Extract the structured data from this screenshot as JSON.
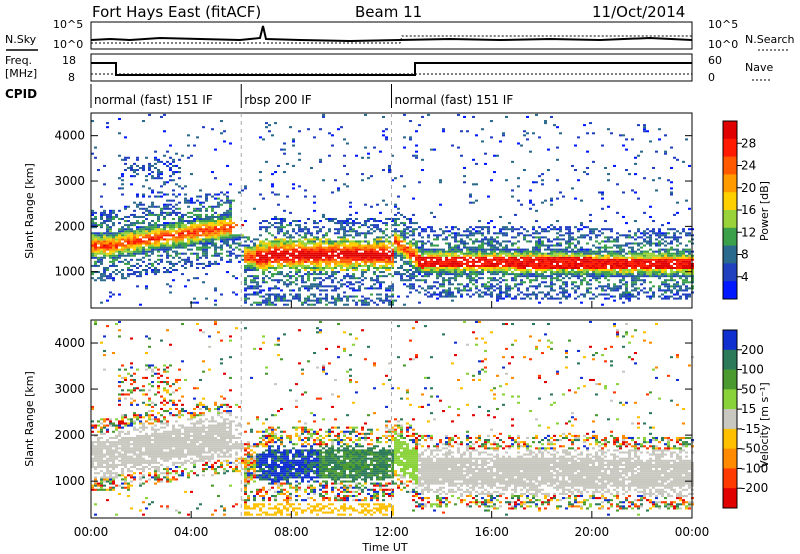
{
  "header": {
    "title": "Fort Hays East (fitACF)",
    "beam": "Beam 11",
    "date": "11/Oct/2014"
  },
  "side_labels": {
    "nsky": "N.Sky",
    "nsearch": "N.Search",
    "freq_line1": "Freq.",
    "freq_line2": "[MHz]",
    "nave": "Nave",
    "cpid": "CPID"
  },
  "strip_ticks": {
    "noise_left": [
      "10^5",
      "10^0"
    ],
    "noise_right": [
      "10^5",
      "10^0"
    ],
    "freq_left": [
      "18",
      "8"
    ],
    "nave_right": [
      "60",
      "0"
    ]
  },
  "cpid_segments": [
    {
      "label": "normal (fast) 151 IF",
      "start_h": 0,
      "end_h": 6
    },
    {
      "label": "rbsp 200 IF",
      "start_h": 6,
      "end_h": 12
    },
    {
      "label": "normal (fast) 151 IF",
      "start_h": 12,
      "end_h": 24
    }
  ],
  "chart_data": [
    {
      "type": "heatmap",
      "name": "power",
      "ylabel": "Slant Range [km]",
      "x_ticks": [
        "00:00",
        "04:00",
        "08:00",
        "12:00",
        "16:00",
        "20:00",
        "00:00"
      ],
      "y_ticks": [
        "1000",
        "2000",
        "3000",
        "4000"
      ],
      "ylim": [
        200,
        4500
      ],
      "xlim_hours": [
        0,
        24
      ],
      "colorbar_label": "Power [dB]",
      "colorbar_ticks": [
        "4",
        "8",
        "12",
        "16",
        "20",
        "24",
        "28"
      ],
      "colorbar_colors": [
        "#0018ff",
        "#2040c0",
        "#2a6a8c",
        "#3aa04a",
        "#9ad23a",
        "#ffd000",
        "#ff9a00",
        "#ff5a00",
        "#ff1a00",
        "#e00000"
      ]
    },
    {
      "type": "heatmap",
      "name": "velocity",
      "ylabel": "Slant Range [km]",
      "x_ticks": [
        "00:00",
        "04:00",
        "08:00",
        "12:00",
        "16:00",
        "20:00",
        "00:00"
      ],
      "y_ticks": [
        "1000",
        "2000",
        "3000",
        "4000"
      ],
      "ylim": [
        200,
        4500
      ],
      "xlim_hours": [
        0,
        24
      ],
      "xlabel": "Time UT",
      "colorbar_label": "Velocity [m s⁻¹]",
      "colorbar_ticks": [
        "200",
        "100",
        "50",
        "15",
        "-15",
        "-50",
        "-100",
        "-200"
      ],
      "colorbar_colors": [
        "#1030d0",
        "#2c7a5a",
        "#4a9a30",
        "#8ad23a",
        "#c8c8c0",
        "#ffc000",
        "#ff8a00",
        "#ff3a00",
        "#e00000"
      ]
    }
  ],
  "series_colors": {
    "ground_grey": "#c8c8c0"
  }
}
